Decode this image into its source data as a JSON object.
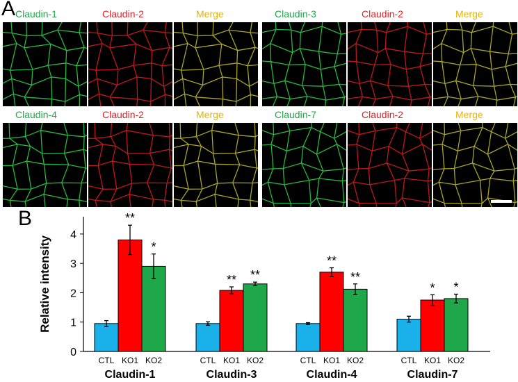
{
  "panel_a": {
    "letter": "A",
    "colors": {
      "green_label": "#1ea84a",
      "red_label": "#e0222a",
      "merge_label": "#e8b400"
    },
    "groups": [
      {
        "labels": [
          "Claudin-1",
          "Claudin-2",
          "Merge"
        ]
      },
      {
        "labels": [
          "Claudin-3",
          "Claudin-2",
          "Merge"
        ]
      },
      {
        "labels": [
          "Claudin-4",
          "Claudin-2",
          "Merge"
        ]
      },
      {
        "labels": [
          "Claudin-7",
          "Claudin-2",
          "Merge"
        ]
      }
    ]
  },
  "panel_b": {
    "letter": "B",
    "chart_data": {
      "type": "bar",
      "ylabel": "Relative intensity",
      "ylim": [
        0,
        4.4
      ],
      "yticks": [
        0,
        1,
        2,
        3,
        4
      ],
      "groups": [
        "Claudin-1",
        "Claudin-3",
        "Claudin-4",
        "Claudin-7"
      ],
      "sub_categories": [
        "CTL",
        "KO1",
        "KO2"
      ],
      "colors": [
        "#1ab0ea",
        "#ff0000",
        "#1ea84a"
      ],
      "values": [
        [
          0.95,
          3.8,
          2.9
        ],
        [
          0.95,
          2.08,
          2.3
        ],
        [
          0.95,
          2.7,
          2.12
        ],
        [
          1.1,
          1.75,
          1.8
        ]
      ],
      "errors": [
        [
          0.1,
          0.5,
          0.42
        ],
        [
          0.06,
          0.12,
          0.06
        ],
        [
          0.03,
          0.15,
          0.18
        ],
        [
          0.1,
          0.18,
          0.15
        ]
      ],
      "significance": [
        [
          "",
          "**",
          "*"
        ],
        [
          "",
          "**",
          "**"
        ],
        [
          "",
          "**",
          "**"
        ],
        [
          "",
          "*",
          "*"
        ]
      ]
    }
  }
}
